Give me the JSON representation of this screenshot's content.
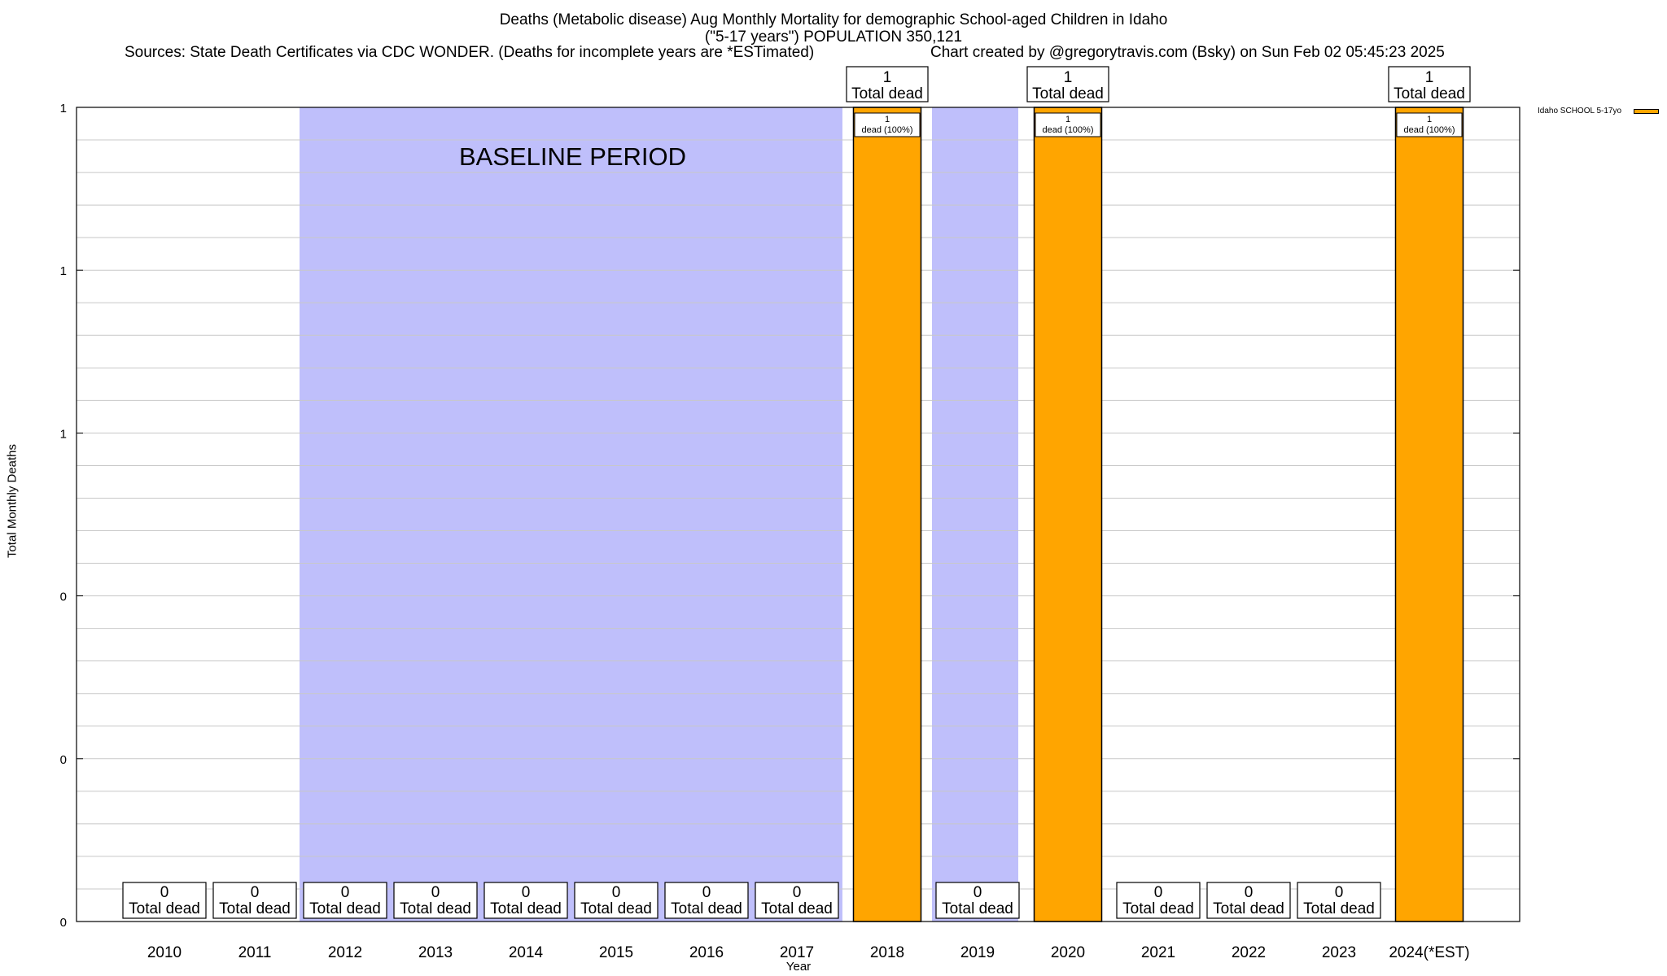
{
  "title_line1": "Deaths (Metabolic disease) Aug Monthly Mortality for demographic School-aged Children in Idaho",
  "title_line2": "(\"5-17 years\") POPULATION 350,121",
  "sources": "Sources: State Death Certificates via CDC WONDER. (Deaths for incomplete years are *ESTimated)",
  "credit": "Chart created by @gregorytravis.com (Bsky) on Sun Feb 02 05:45:23 2025",
  "colors": {
    "bar": "#ffa500",
    "baseline": "#bfbffb",
    "grid": "#c8c8c8"
  },
  "chart_data": {
    "type": "bar",
    "title": "Deaths (Metabolic disease) Aug Monthly Mortality for demographic School-aged Children in Idaho",
    "xlabel": "Year",
    "ylabel": "Total Monthly Deaths",
    "ylim": [
      0,
      1
    ],
    "y_tick_labels": [
      "0",
      "0",
      "0",
      "1",
      "1",
      "1"
    ],
    "grid": true,
    "legend_position": "top-right",
    "baseline_label": "BASELINE PERIOD",
    "baseline_period": [
      [
        "2012",
        "2017"
      ],
      [
        "2019",
        "2019"
      ]
    ],
    "categories": [
      "2010",
      "2011",
      "2012",
      "2013",
      "2014",
      "2015",
      "2016",
      "2017",
      "2018",
      "2019",
      "2020",
      "2021",
      "2022",
      "2023",
      "2024(*EST)"
    ],
    "series": [
      {
        "name": "Idaho SCHOOL 5-17yo",
        "values": [
          0,
          0,
          0,
          0,
          0,
          0,
          0,
          0,
          1,
          0,
          1,
          0,
          0,
          0,
          1
        ]
      }
    ],
    "total_label_text": "Total dead",
    "inner_label": {
      "count": "1",
      "text": "dead (100%)"
    }
  }
}
